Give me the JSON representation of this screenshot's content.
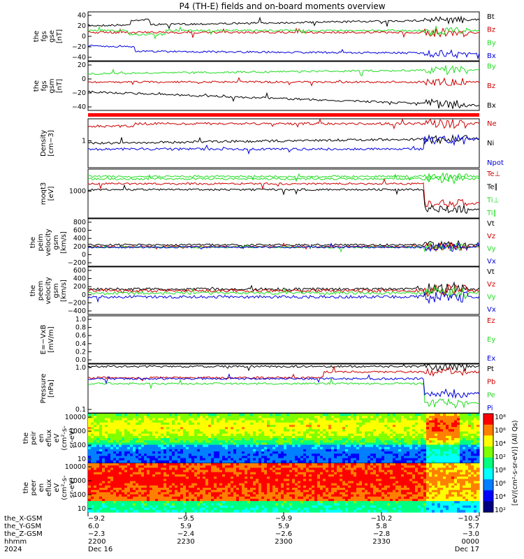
{
  "title": "P4 (TH-E) fields and on-board moments overview",
  "colors": {
    "black": "#000000",
    "red": "#cc0000",
    "green": "#22dd22",
    "blue": "#0000dd",
    "bright_red": "#ff0000"
  },
  "chart_data": [
    {
      "type": "line",
      "ylabel": [
        "the",
        "fgs",
        "gse",
        "[nT]"
      ],
      "yticks": [
        "40",
        "20",
        "0",
        "−20",
        "−40"
      ],
      "ylim": [
        -40,
        40
      ],
      "series": [
        {
          "name": "Bt",
          "color": "black",
          "start": 22,
          "end": 22
        },
        {
          "name": "Bz",
          "color": "red",
          "start": 6,
          "end": 10
        },
        {
          "name": "By",
          "color": "green",
          "start": 7,
          "end": 5
        },
        {
          "name": "Bx",
          "color": "blue",
          "start": -22,
          "end": -30
        }
      ]
    },
    {
      "type": "line",
      "ylabel": [
        "the",
        "fgs",
        "gsm",
        "[nT]"
      ],
      "yticks": [
        "20",
        "0",
        "−20",
        "−40"
      ],
      "ylim": [
        -55,
        28
      ],
      "series": [
        {
          "name": "By",
          "color": "green",
          "start": 8,
          "end": 14
        },
        {
          "name": "Bz",
          "color": "red",
          "start": 0,
          "end": -3
        },
        {
          "name": "Bx",
          "color": "black",
          "start": -22,
          "end": -42
        }
      ]
    },
    {
      "type": "line",
      "ylabel": [
        "Density",
        "[cm−3]"
      ],
      "yticks": [
        "1"
      ],
      "log": true,
      "series": [
        {
          "name": "Ne",
          "color": "red"
        },
        {
          "name": "Ni",
          "color": "black"
        },
        {
          "name": "Npot",
          "color": "blue"
        }
      ]
    },
    {
      "type": "line",
      "ylabel": [
        "moqt3",
        "[eV]"
      ],
      "yticks": [
        "1000"
      ],
      "log": true,
      "series": [
        {
          "name": "Te⊥",
          "color": "red"
        },
        {
          "name": "Te∥",
          "color": "black"
        },
        {
          "name": "Ti⊥",
          "color": "green"
        },
        {
          "name": "Ti∥",
          "color": "green"
        }
      ]
    },
    {
      "type": "line",
      "ylabel": [
        "the",
        "peim",
        "velocity",
        "gsm",
        "[km/s]"
      ],
      "yticks": [
        "800",
        "600",
        "400",
        "200",
        "0",
        "−200"
      ],
      "ylim": [
        -300,
        800
      ],
      "series": [
        {
          "name": "Vt",
          "color": "black"
        },
        {
          "name": "Vz",
          "color": "red"
        },
        {
          "name": "Vy",
          "color": "green"
        },
        {
          "name": "Vx",
          "color": "blue"
        }
      ]
    },
    {
      "type": "line",
      "ylabel": [
        "the",
        "peem",
        "velocity",
        "gsm",
        "[km/s]"
      ],
      "yticks": [
        "600",
        "400",
        "200",
        "0",
        "−200",
        "−400"
      ],
      "ylim": [
        -500,
        650
      ],
      "series": [
        {
          "name": "Vt",
          "color": "black"
        },
        {
          "name": "Vz",
          "color": "red"
        },
        {
          "name": "Vy",
          "color": "green"
        },
        {
          "name": "Vx",
          "color": "blue"
        }
      ]
    },
    {
      "type": "line",
      "ylabel": [
        "E=−VxB",
        "[mV/m]"
      ],
      "yticks": [
        "1.0",
        "0.8",
        "0.6",
        "0.4",
        "0.2",
        "0.0"
      ],
      "ylim": [
        0,
        1
      ],
      "series": [
        {
          "name": "Ez",
          "color": "red"
        },
        {
          "name": "Ey",
          "color": "green"
        },
        {
          "name": "Ex",
          "color": "blue"
        }
      ]
    },
    {
      "type": "line",
      "ylabel": [
        "Pressure",
        "[nPa]"
      ],
      "yticks": [
        "1.0",
        "0.1"
      ],
      "log": true,
      "series": [
        {
          "name": "Pt",
          "color": "black"
        },
        {
          "name": "Pb",
          "color": "red"
        },
        {
          "name": "Pe",
          "color": "green"
        },
        {
          "name": "Pi",
          "color": "blue"
        }
      ]
    },
    {
      "type": "heatmap",
      "ylabel": [
        "the",
        "peir",
        "en",
        "eflux",
        "eV",
        "(cm²-s-",
        "sr-eV)"
      ],
      "yticks": [
        "10000",
        "1000",
        "100",
        "10"
      ],
      "log": true
    },
    {
      "type": "heatmap",
      "ylabel": [
        "the",
        "peer",
        "en",
        "eflux",
        "eV",
        "(cm²-s-",
        "sr-eV)"
      ],
      "yticks": [
        "10000",
        "1000",
        "100",
        "10"
      ],
      "log": true
    }
  ],
  "colorbar": {
    "label": "[eV/(cm²-s-sr-eV)] (All Qs)",
    "ticks1": [
      "10⁶",
      "10⁴",
      "10²"
    ],
    "ticks1b": [
      "10⁸"
    ],
    "ticks2": [
      "10⁸",
      "10⁶",
      "10⁴",
      "10²"
    ]
  },
  "footer": {
    "row_labels": [
      "the_X-GSM",
      "the_Y-GSM",
      "the_Z-GSM",
      "hhmm",
      "2024"
    ],
    "columns": [
      [
        "−9.2",
        "6.0",
        "−2.3",
        "2200",
        "Dec 16"
      ],
      [
        "−9.5",
        "5.9",
        "−2.4",
        "2230",
        ""
      ],
      [
        "−9.9",
        "5.9",
        "−2.6",
        "2300",
        ""
      ],
      [
        "−10.2",
        "5.8",
        "−2.8",
        "2330",
        ""
      ],
      [
        "−10.5",
        "5.7",
        "−3.0",
        "0000",
        "Dec 17"
      ]
    ]
  }
}
